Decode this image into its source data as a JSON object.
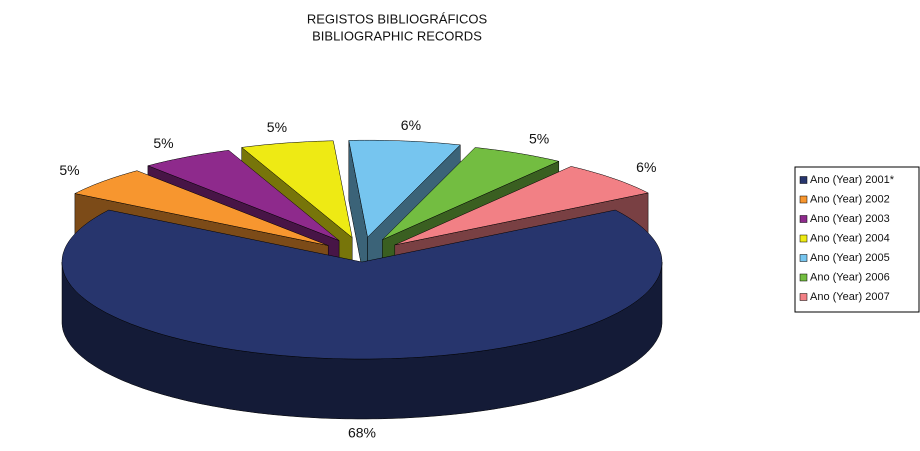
{
  "chart_data": {
    "type": "pie3d",
    "title": "REGISTOS BIBLIOGRÁFICOS",
    "subtitle": "BIBLIOGRAPHIC RECORDS",
    "categories": [
      "Ano (Year) 2001*",
      "Ano (Year) 2002",
      "Ano (Year) 2003",
      "Ano (Year) 2004",
      "Ano (Year) 2005",
      "Ano (Year) 2006",
      "Ano (Year) 2007"
    ],
    "values": [
      68,
      5,
      5,
      5,
      6,
      5,
      6
    ],
    "value_labels": [
      "68%",
      "5%",
      "5%",
      "5%",
      "6%",
      "5%",
      "6%"
    ],
    "colors": [
      "#27356d",
      "#f7962f",
      "#8e2a8c",
      "#eeea14",
      "#76c5ef",
      "#73bd41",
      "#f28085"
    ],
    "legend": "right"
  }
}
